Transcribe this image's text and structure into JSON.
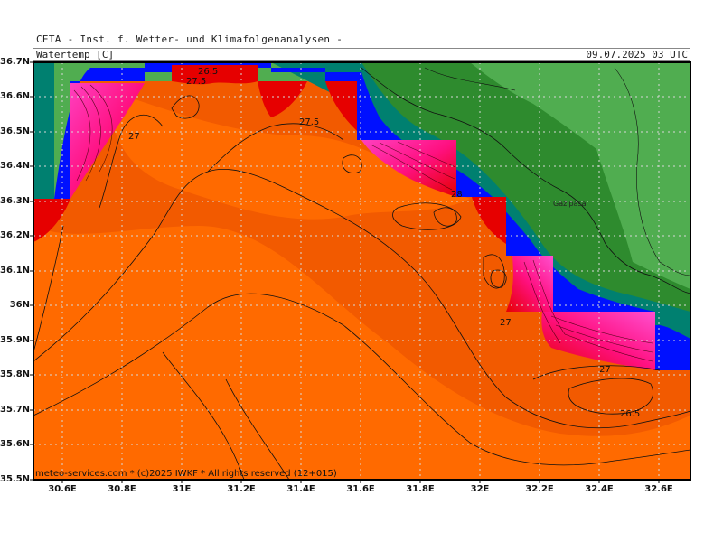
{
  "header": {
    "institute": "CETA - Inst. f. Wetter- und Klimafolgenanalysen -",
    "parameter": "Watertemp [C]",
    "datetime": "09.07.2025 03 UTC"
  },
  "axes": {
    "lat_labels": [
      "36.7N",
      "36.6N",
      "36.5N",
      "36.4N",
      "36.3N",
      "36.2N",
      "36.1N",
      "36N",
      "35.9N",
      "35.8N",
      "35.7N",
      "35.6N",
      "35.5N"
    ],
    "lon_labels": [
      "30.6E",
      "30.8E",
      "31E",
      "31.2E",
      "31.4E",
      "31.6E",
      "31.8E",
      "32E",
      "32.2E",
      "32.4E",
      "32.6E"
    ]
  },
  "contour_labels": [
    "26.5",
    "27.5",
    "27",
    "27.5",
    "27",
    "27",
    "27",
    "26.5",
    "28"
  ],
  "place_labels": [
    "Gazipasa"
  ],
  "footer": "meteo-services.com * (c)2025 IWKF * All rights reserved (12+015)",
  "colors": {
    "sea_main": "#ff6a00",
    "sea_dark": "#f25a00",
    "warm_red": "#e60000",
    "warm_magenta": "#ff40c0",
    "cold_blue": "#0010ff",
    "land_green": "#50ad50",
    "land_dark_green": "#2e8b2e",
    "coast_teal": "#008070"
  }
}
